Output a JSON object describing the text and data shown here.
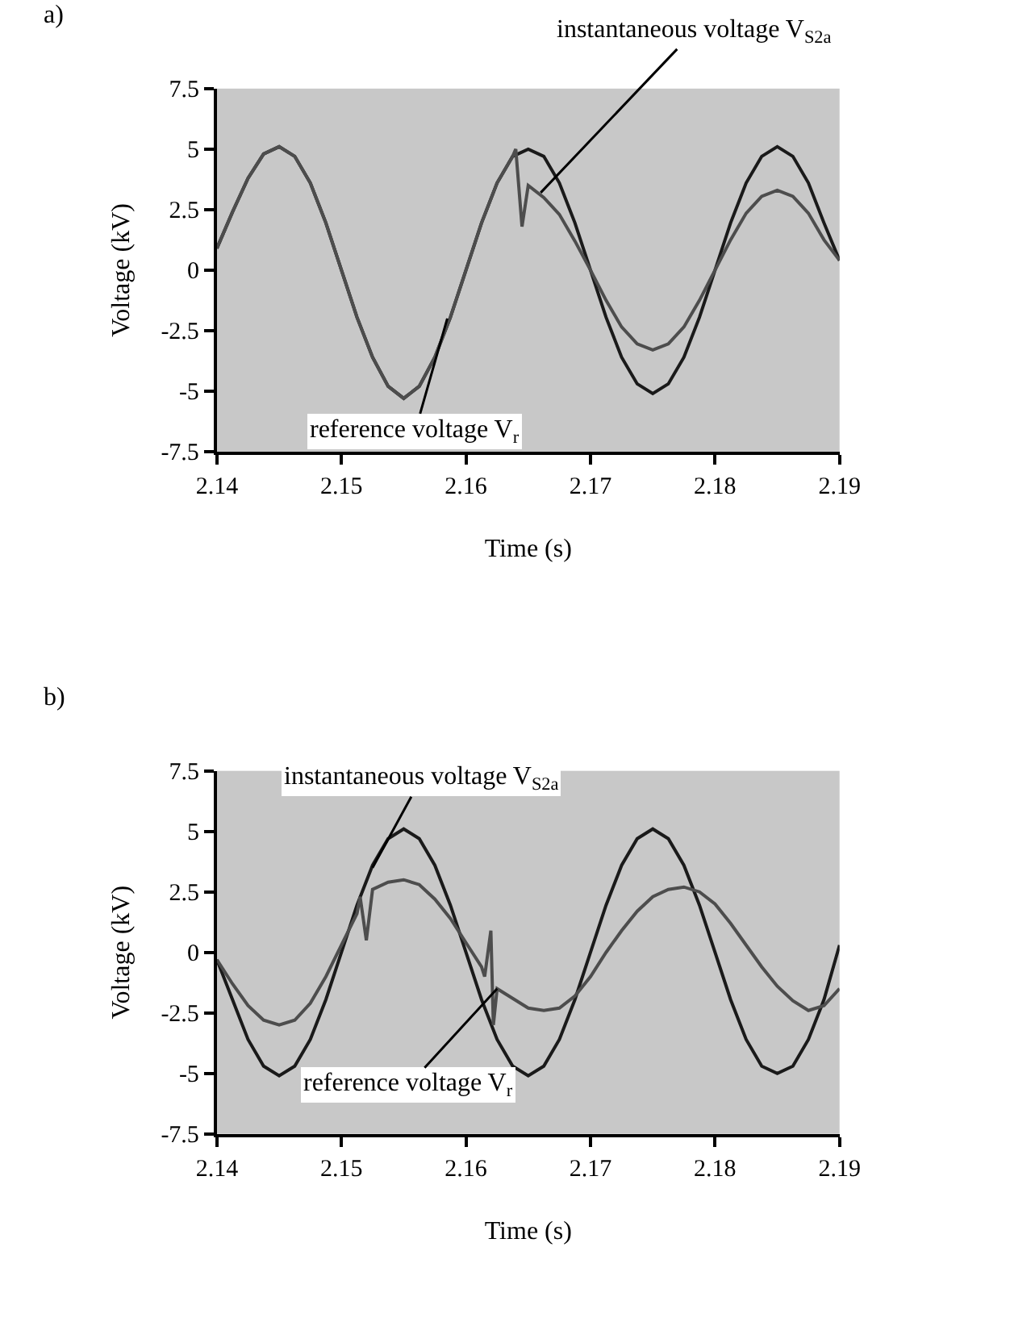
{
  "chart_data": [
    {
      "type": "line",
      "title": "a)",
      "xlabel": "Time (s)",
      "ylabel": "Voltage (kV)",
      "xlim": [
        2.14,
        2.19
      ],
      "xticks": [
        2.14,
        2.15,
        2.16,
        2.17,
        2.18,
        2.19
      ],
      "ylim": [
        -7.5,
        7.5
      ],
      "yticks": [
        -7.5,
        -5,
        -2.5,
        0,
        2.5,
        5,
        7.5
      ],
      "grid": false,
      "marker": "none",
      "line_style": "solid",
      "series": [
        {
          "color": "#1a1a1a",
          "x": [
            2.14,
            2.14125,
            2.1425,
            2.14375,
            2.145,
            2.14625,
            2.1475,
            2.14875,
            2.15,
            2.15125,
            2.1525,
            2.15375,
            2.155,
            2.15625,
            2.1575,
            2.15875,
            2.16,
            2.16125,
            2.1625,
            2.16375,
            2.165,
            2.16625,
            2.1675,
            2.16875,
            2.17,
            2.17125,
            2.1725,
            2.17375,
            2.175,
            2.17625,
            2.1775,
            2.17875,
            2.18,
            2.18125,
            2.1825,
            2.18375,
            2.185,
            2.18625,
            2.1875,
            2.18875,
            2.19
          ],
          "values": [
            0.9,
            2.4,
            3.8,
            4.8,
            5.1,
            4.7,
            3.6,
            1.95,
            0,
            -1.95,
            -3.6,
            -4.8,
            -5.3,
            -4.8,
            -3.6,
            -1.95,
            0,
            1.95,
            3.6,
            4.7,
            5.0,
            4.7,
            3.6,
            1.95,
            0,
            -1.95,
            -3.6,
            -4.7,
            -5.1,
            -4.7,
            -3.6,
            -1.95,
            0,
            1.95,
            3.6,
            4.7,
            5.1,
            4.7,
            3.6,
            1.95,
            0.4
          ]
        },
        {
          "color": "#4d4d4d",
          "x": [
            2.14,
            2.14125,
            2.1425,
            2.14375,
            2.145,
            2.14625,
            2.1475,
            2.14875,
            2.15,
            2.15125,
            2.1525,
            2.15375,
            2.155,
            2.15625,
            2.1575,
            2.15875,
            2.16,
            2.16125,
            2.1625,
            2.16375,
            2.164,
            2.1645,
            2.165,
            2.16625,
            2.1675,
            2.16875,
            2.17,
            2.17125,
            2.1725,
            2.17375,
            2.175,
            2.17625,
            2.1775,
            2.17875,
            2.18,
            2.18125,
            2.1825,
            2.18375,
            2.185,
            2.18625,
            2.1875,
            2.18875,
            2.19
          ],
          "values": [
            0.9,
            2.4,
            3.8,
            4.8,
            5.1,
            4.7,
            3.6,
            1.95,
            0,
            -1.95,
            -3.6,
            -4.8,
            -5.3,
            -4.8,
            -3.6,
            -1.95,
            0,
            1.95,
            3.6,
            4.7,
            5.0,
            1.8,
            3.5,
            3.0,
            2.3,
            1.2,
            0,
            -1.25,
            -2.35,
            -3.05,
            -3.3,
            -3.05,
            -2.35,
            -1.25,
            0,
            1.25,
            2.35,
            3.05,
            3.3,
            3.05,
            2.35,
            1.25,
            0.4
          ]
        }
      ],
      "annotations": [
        {
          "text": "instantaneous voltage V$_{S2a}$",
          "x": 2.166,
          "y": 3.2
        },
        {
          "text": "reference voltage V$_{r}$",
          "x": 2.1585,
          "y": -2.0
        }
      ]
    },
    {
      "type": "line",
      "title": "b)",
      "xlabel": "Time (s)",
      "ylabel": "Voltage (kV)",
      "xlim": [
        2.14,
        2.19
      ],
      "xticks": [
        2.14,
        2.15,
        2.16,
        2.17,
        2.18,
        2.19
      ],
      "ylim": [
        -7.5,
        7.5
      ],
      "yticks": [
        -7.5,
        -5,
        -2.5,
        0,
        2.5,
        5,
        7.5
      ],
      "grid": false,
      "marker": "none",
      "line_style": "solid",
      "series": [
        {
          "color": "#1a1a1a",
          "x": [
            2.14,
            2.14125,
            2.1425,
            2.14375,
            2.145,
            2.14625,
            2.1475,
            2.14875,
            2.15,
            2.15125,
            2.1525,
            2.15375,
            2.155,
            2.15625,
            2.1575,
            2.15875,
            2.16,
            2.16125,
            2.1625,
            2.16375,
            2.165,
            2.16625,
            2.1675,
            2.16875,
            2.17,
            2.17125,
            2.1725,
            2.17375,
            2.175,
            2.17625,
            2.1775,
            2.17875,
            2.18,
            2.18125,
            2.1825,
            2.18375,
            2.185,
            2.18625,
            2.1875,
            2.18875,
            2.19
          ],
          "values": [
            -0.3,
            -1.95,
            -3.6,
            -4.7,
            -5.1,
            -4.7,
            -3.6,
            -1.95,
            0,
            1.95,
            3.6,
            4.7,
            5.1,
            4.7,
            3.6,
            1.95,
            0,
            -1.95,
            -3.6,
            -4.7,
            -5.1,
            -4.7,
            -3.6,
            -1.95,
            0,
            1.95,
            3.6,
            4.7,
            5.1,
            4.7,
            3.6,
            1.95,
            0,
            -1.95,
            -3.6,
            -4.7,
            -5.0,
            -4.7,
            -3.6,
            -1.95,
            0.3
          ]
        },
        {
          "color": "#4d4d4d",
          "x": [
            2.14,
            2.14125,
            2.1425,
            2.14375,
            2.145,
            2.14625,
            2.1475,
            2.14875,
            2.15,
            2.15125,
            2.1515,
            2.152,
            2.1525,
            2.15375,
            2.155,
            2.15625,
            2.1575,
            2.15875,
            2.16,
            2.16125,
            2.1615,
            2.162,
            2.1622,
            2.1625,
            2.16375,
            2.165,
            2.16625,
            2.1675,
            2.16875,
            2.17,
            2.17125,
            2.1725,
            2.17375,
            2.175,
            2.17625,
            2.1775,
            2.17875,
            2.18,
            2.18125,
            2.1825,
            2.18375,
            2.185,
            2.18625,
            2.1875,
            2.18875,
            2.19
          ],
          "values": [
            -0.3,
            -1.3,
            -2.2,
            -2.8,
            -3.0,
            -2.8,
            -2.1,
            -1.0,
            0.3,
            1.6,
            2.3,
            0.5,
            2.6,
            2.9,
            3.0,
            2.8,
            2.2,
            1.4,
            0.4,
            -0.6,
            -1.0,
            0.9,
            -3.0,
            -1.5,
            -1.9,
            -2.3,
            -2.4,
            -2.3,
            -1.8,
            -1.0,
            0,
            0.9,
            1.7,
            2.3,
            2.6,
            2.7,
            2.5,
            2.0,
            1.2,
            0.3,
            -0.6,
            -1.4,
            -2.0,
            -2.4,
            -2.2,
            -1.5
          ]
        }
      ],
      "annotations": [
        {
          "text": "instantaneous voltage V$_{S2a}$",
          "x": 2.1525,
          "y": 3.5
        },
        {
          "text": "reference voltage V$_{r}$",
          "x": 2.1625,
          "y": -1.5
        }
      ]
    }
  ]
}
